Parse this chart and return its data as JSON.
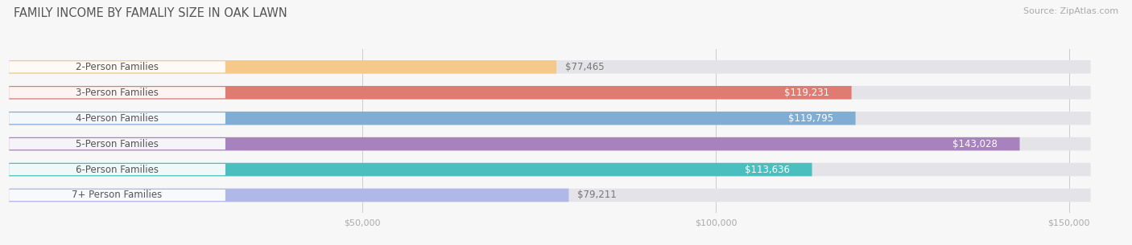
{
  "title": "FAMILY INCOME BY FAMALIY SIZE IN OAK LAWN",
  "source": "Source: ZipAtlas.com",
  "categories": [
    "2-Person Families",
    "3-Person Families",
    "4-Person Families",
    "5-Person Families",
    "6-Person Families",
    "7+ Person Families"
  ],
  "values": [
    77465,
    119231,
    119795,
    143028,
    113636,
    79211
  ],
  "bar_colors": [
    "#f5c98a",
    "#e07b72",
    "#7fadd4",
    "#a882be",
    "#4bbfbf",
    "#b0b8e8"
  ],
  "bar_bg_color": "#e4e4e8",
  "label_text_color": "#555555",
  "value_text_white": [
    false,
    true,
    true,
    true,
    true,
    false
  ],
  "value_text_color_dark": "#777777",
  "xlim": [
    0,
    157000
  ],
  "xtick_positions": [
    50000,
    100000,
    150000
  ],
  "xtick_labels": [
    "$50,000",
    "$100,000",
    "$150,000"
  ],
  "background_color": "#f7f7f7",
  "bar_height": 0.52,
  "title_fontsize": 10.5,
  "label_fontsize": 8.5,
  "value_fontsize": 8.5,
  "source_fontsize": 8
}
